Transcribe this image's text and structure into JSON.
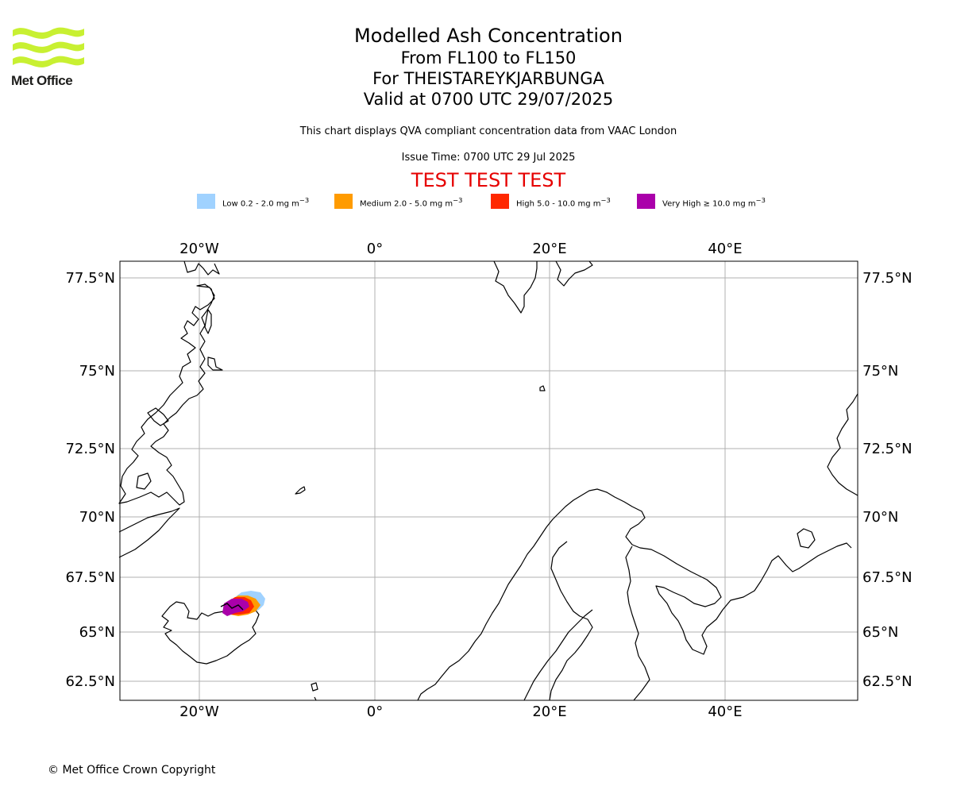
{
  "logo": {
    "name": "Met Office",
    "brand_color": "#c8f032",
    "text_color": "#1d1d1b"
  },
  "header": {
    "title": "Modelled Ash Concentration",
    "levels": "From FL100 to FL150",
    "volcano": "For THEISTAREYKJARBUNGA",
    "valid": "Valid at 0700 UTC 29/07/2025",
    "description": "This chart displays QVA compliant concentration data from VAAC London",
    "issue_time": "Issue Time: 0700 UTC 29 Jul 2025",
    "test_banner": "TEST TEST TEST",
    "test_color": "#e60000"
  },
  "legend": [
    {
      "label_prefix": "Low 0.2 - 2.0 mg m",
      "color": "#a0d2ff"
    },
    {
      "label_prefix": "Medium 2.0 - 5.0 mg m",
      "color": "#ff9b00"
    },
    {
      "label_prefix": "High 5.0 - 10.0 mg m",
      "color": "#ff2800"
    },
    {
      "label_prefix": "Very High ≥ 10.0 mg m",
      "color": "#aa00aa"
    }
  ],
  "legend_unit_exponent": "−3",
  "map": {
    "longitude_labels": [
      "20°W",
      "0°",
      "20°E",
      "40°E"
    ],
    "latitude_labels": [
      "77.5°N",
      "75°N",
      "72.5°N",
      "70°N",
      "67.5°N",
      "65°N",
      "62.5°N"
    ],
    "extent": {
      "lon_min": -29,
      "lon_max": 55,
      "lat_min": 62,
      "lat_max": 78
    }
  },
  "copyright": "© Met Office Crown Copyright"
}
